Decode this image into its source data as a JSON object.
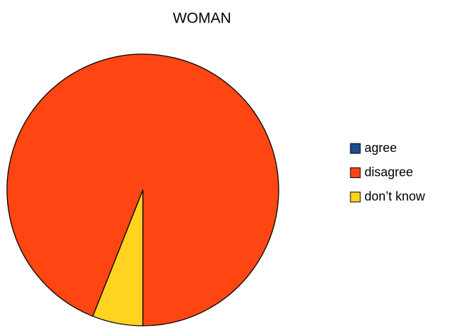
{
  "chart_data": {
    "type": "pie",
    "title": "WOMAN",
    "categories": [
      "agree",
      "disagree",
      "don’t know"
    ],
    "values": [
      0,
      94,
      6
    ],
    "colors": [
      "#1f4e8c",
      "#ff4612",
      "#ffd320"
    ],
    "legend": "right"
  }
}
